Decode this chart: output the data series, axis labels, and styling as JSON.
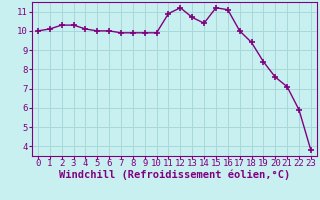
{
  "x": [
    0,
    1,
    2,
    3,
    4,
    5,
    6,
    7,
    8,
    9,
    10,
    11,
    12,
    13,
    14,
    15,
    16,
    17,
    18,
    19,
    20,
    21,
    22,
    23
  ],
  "y": [
    10.0,
    10.1,
    10.3,
    10.3,
    10.1,
    10.0,
    10.0,
    9.9,
    9.9,
    9.9,
    9.9,
    10.9,
    11.2,
    10.7,
    10.4,
    11.2,
    11.1,
    10.0,
    9.4,
    8.4,
    7.6,
    7.1,
    5.9,
    3.8
  ],
  "line_color": "#800080",
  "marker": "+",
  "marker_size": 4,
  "bg_color": "#c8f0f0",
  "grid_color": "#a8d8d8",
  "xlabel": "Windchill (Refroidissement éolien,°C)",
  "ylabel": "",
  "title": "",
  "xlim": [
    -0.5,
    23.5
  ],
  "ylim": [
    3.5,
    11.5
  ],
  "yticks": [
    4,
    5,
    6,
    7,
    8,
    9,
    10,
    11
  ],
  "xticks": [
    0,
    1,
    2,
    3,
    4,
    5,
    6,
    7,
    8,
    9,
    10,
    11,
    12,
    13,
    14,
    15,
    16,
    17,
    18,
    19,
    20,
    21,
    22,
    23
  ],
  "tick_color": "#800080",
  "label_color": "#800080",
  "font_size": 6.5,
  "xlabel_fontsize": 7.5
}
